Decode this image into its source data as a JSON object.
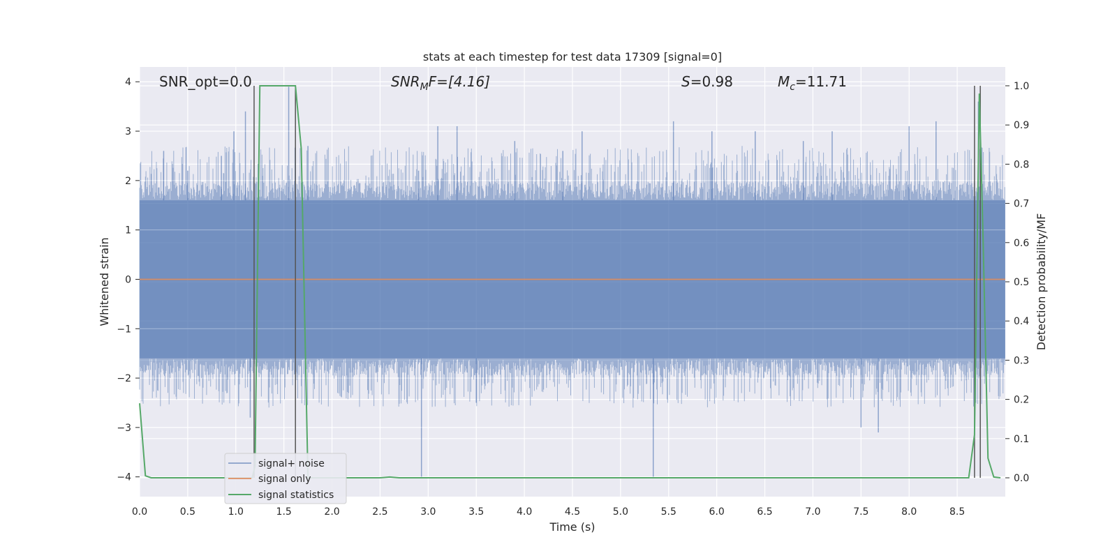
{
  "chart_data": {
    "type": "line",
    "title": "stats at each timestep for test data 17309 [signal=0]",
    "xlabel": "Time (s)",
    "ylabel": "Whitened strain",
    "y2label": "Detection probability/MF",
    "xlim": [
      0.0,
      9.0
    ],
    "ylim": [
      -4.4,
      4.3
    ],
    "y2lim": [
      -0.048,
      1.048
    ],
    "xticks": [
      "0.0",
      "0.5",
      "1.0",
      "1.5",
      "2.0",
      "2.5",
      "3.0",
      "3.5",
      "4.0",
      "4.5",
      "5.0",
      "5.5",
      "6.0",
      "6.5",
      "7.0",
      "7.5",
      "8.0",
      "8.5"
    ],
    "yticks": [
      "−4",
      "−3",
      "−2",
      "−1",
      "0",
      "1",
      "2",
      "3",
      "4"
    ],
    "y2ticks": [
      "0.0",
      "0.1",
      "0.2",
      "0.3",
      "0.4",
      "0.5",
      "0.6",
      "0.7",
      "0.8",
      "0.9",
      "1.0"
    ],
    "grid": true,
    "legend_placement": "lower-left",
    "background": "#eaeaf2",
    "annotations": {
      "snr_opt": "SNR_opt=0.0",
      "snr_mf_var": "SNR",
      "snr_mf_sub": "M",
      "snr_mf_rest": "F=[4.16]",
      "s_var": "S",
      "s_rest": "=0.98",
      "mc_var": "M",
      "mc_sub": "c",
      "mc_rest": "=11.71"
    },
    "vertical_lines_x": [
      1.19,
      1.62,
      8.68,
      8.74
    ],
    "series": [
      {
        "name": "signal+ noise",
        "color": "#4c72b0",
        "axis": "left",
        "noise_envelope": 1.6,
        "spikes": [
          {
            "x": 0.25,
            "y": 2.6
          },
          {
            "x": 0.5,
            "y": 2.2
          },
          {
            "x": 0.85,
            "y": 2.5
          },
          {
            "x": 0.98,
            "y": 3.0
          },
          {
            "x": 1.1,
            "y": 3.4
          },
          {
            "x": 1.15,
            "y": -2.8
          },
          {
            "x": 1.55,
            "y": 3.9
          },
          {
            "x": 1.75,
            "y": 2.7
          },
          {
            "x": 2.9,
            "y": 2.2
          },
          {
            "x": 2.93,
            "y": -4.0
          },
          {
            "x": 3.1,
            "y": 3.1
          },
          {
            "x": 3.3,
            "y": 3.1
          },
          {
            "x": 3.5,
            "y": -2.5
          },
          {
            "x": 3.9,
            "y": 2.8
          },
          {
            "x": 4.4,
            "y": 2.6
          },
          {
            "x": 4.6,
            "y": 3.0
          },
          {
            "x": 5.34,
            "y": -4.0
          },
          {
            "x": 5.55,
            "y": 3.2
          },
          {
            "x": 5.95,
            "y": 3.0
          },
          {
            "x": 6.4,
            "y": 3.0
          },
          {
            "x": 6.9,
            "y": 2.8
          },
          {
            "x": 7.2,
            "y": 3.0
          },
          {
            "x": 7.5,
            "y": -3.0
          },
          {
            "x": 7.68,
            "y": -3.1
          },
          {
            "x": 8.0,
            "y": 3.1
          },
          {
            "x": 8.28,
            "y": 3.2
          },
          {
            "x": 8.72,
            "y": 3.6
          }
        ]
      },
      {
        "name": "signal only",
        "color": "#dd8452",
        "axis": "left",
        "x": [
          0.0,
          9.0
        ],
        "y": [
          0.0,
          0.0
        ]
      },
      {
        "name": "signal statistics",
        "color": "#55a868",
        "axis": "right",
        "x": [
          0.0,
          0.06,
          0.12,
          1.17,
          1.2,
          1.25,
          1.62,
          1.68,
          1.75,
          2.5,
          2.6,
          2.7,
          8.62,
          8.68,
          8.73,
          8.77,
          8.82,
          8.88,
          8.95
        ],
        "y": [
          0.19,
          0.005,
          0.0,
          0.0,
          0.03,
          1.0,
          1.0,
          0.84,
          0.0,
          0.0,
          0.002,
          0.0,
          0.0,
          0.11,
          0.98,
          0.6,
          0.05,
          0.002,
          0.0
        ]
      }
    ]
  }
}
